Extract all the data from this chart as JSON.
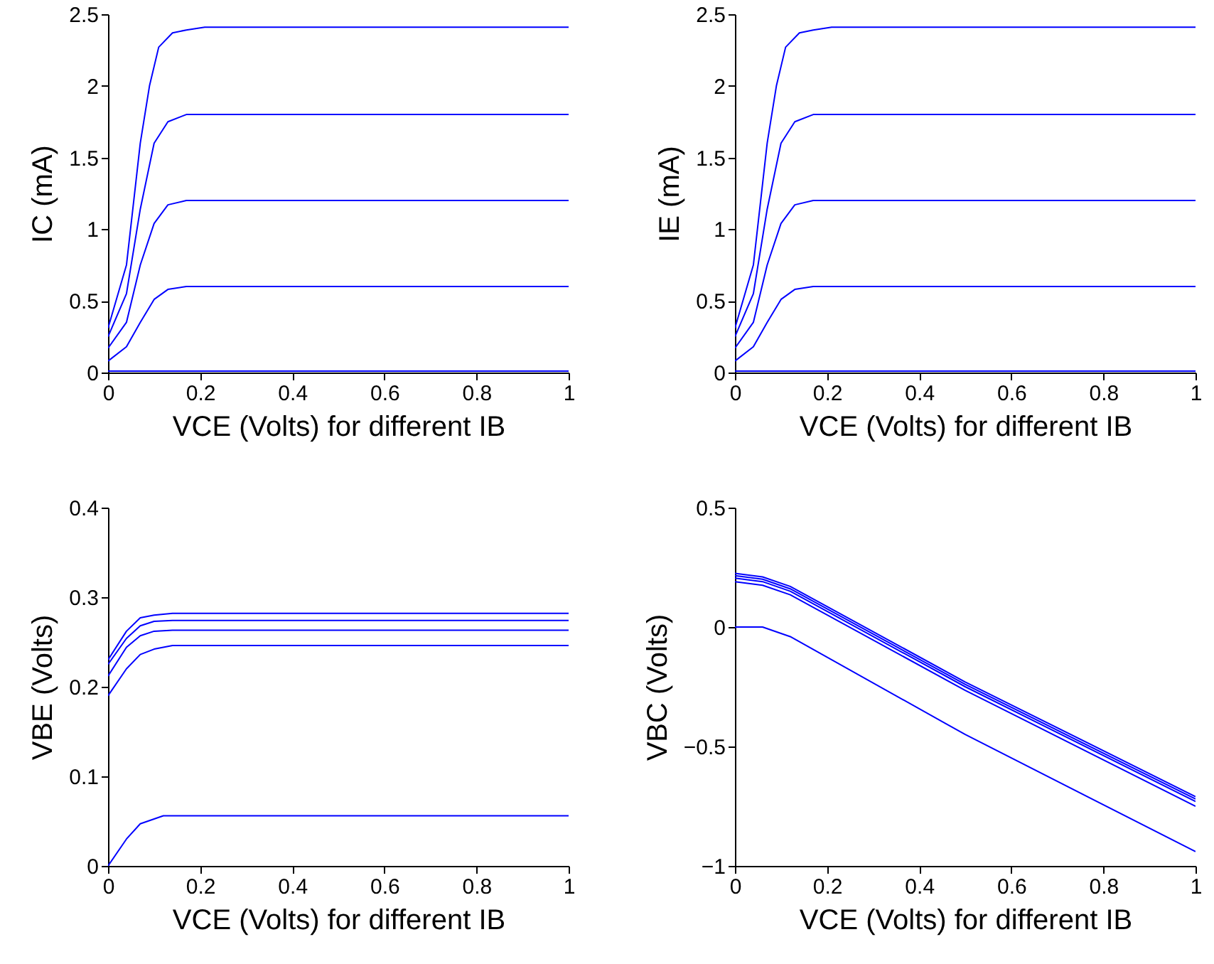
{
  "chart_data": [
    {
      "type": "line",
      "xlabel": "VCE (Volts) for different IB",
      "ylabel": "IC (mA)",
      "xlim": [
        0,
        1
      ],
      "xticks": [
        0,
        0.2,
        0.4,
        0.6,
        0.8,
        1
      ],
      "ylim": [
        0,
        2.5
      ],
      "yticks": [
        0,
        0.5,
        1,
        1.5,
        2,
        2.5
      ],
      "series": [
        {
          "color": "#0000ff",
          "x": [
            0,
            1
          ],
          "values": [
            0.01,
            0.01
          ]
        },
        {
          "color": "#0000ff",
          "x": [
            0,
            0.04,
            0.07,
            0.1,
            0.13,
            0.17,
            1
          ],
          "values": [
            0.08,
            0.18,
            0.35,
            0.51,
            0.58,
            0.6,
            0.6
          ]
        },
        {
          "color": "#0000ff",
          "x": [
            0,
            0.04,
            0.07,
            0.1,
            0.13,
            0.17,
            1
          ],
          "values": [
            0.17,
            0.35,
            0.75,
            1.04,
            1.17,
            1.2,
            1.2
          ]
        },
        {
          "color": "#0000ff",
          "x": [
            0,
            0.04,
            0.07,
            0.1,
            0.13,
            0.17,
            1
          ],
          "values": [
            0.25,
            0.55,
            1.14,
            1.6,
            1.75,
            1.8,
            1.8
          ]
        },
        {
          "color": "#0000ff",
          "x": [
            0,
            0.04,
            0.07,
            0.09,
            0.11,
            0.14,
            0.17,
            0.21,
            1
          ],
          "values": [
            0.31,
            0.75,
            1.6,
            2.0,
            2.27,
            2.37,
            2.39,
            2.41,
            2.41
          ]
        }
      ]
    },
    {
      "type": "line",
      "xlabel": "VCE (Volts) for different IB",
      "ylabel": "IE (mA)",
      "xlim": [
        0,
        1
      ],
      "xticks": [
        0,
        0.2,
        0.4,
        0.6,
        0.8,
        1
      ],
      "ylim": [
        0,
        2.5
      ],
      "yticks": [
        0,
        0.5,
        1,
        1.5,
        2,
        2.5
      ],
      "series": [
        {
          "color": "#0000ff",
          "x": [
            0,
            1
          ],
          "values": [
            0.01,
            0.01
          ]
        },
        {
          "color": "#0000ff",
          "x": [
            0,
            0.04,
            0.07,
            0.1,
            0.13,
            0.17,
            1
          ],
          "values": [
            0.08,
            0.18,
            0.35,
            0.51,
            0.58,
            0.6,
            0.6
          ]
        },
        {
          "color": "#0000ff",
          "x": [
            0,
            0.04,
            0.07,
            0.1,
            0.13,
            0.17,
            1
          ],
          "values": [
            0.17,
            0.35,
            0.75,
            1.04,
            1.17,
            1.2,
            1.2
          ]
        },
        {
          "color": "#0000ff",
          "x": [
            0,
            0.04,
            0.07,
            0.1,
            0.13,
            0.17,
            1
          ],
          "values": [
            0.25,
            0.55,
            1.14,
            1.6,
            1.75,
            1.8,
            1.8
          ]
        },
        {
          "color": "#0000ff",
          "x": [
            0,
            0.04,
            0.07,
            0.09,
            0.11,
            0.14,
            0.17,
            0.21,
            1
          ],
          "values": [
            0.31,
            0.75,
            1.6,
            2.0,
            2.27,
            2.37,
            2.39,
            2.41,
            2.41
          ]
        }
      ]
    },
    {
      "type": "line",
      "xlabel": "VCE (Volts) for different IB",
      "ylabel": "VBE (Volts)",
      "xlim": [
        0,
        1
      ],
      "xticks": [
        0,
        0.2,
        0.4,
        0.6,
        0.8,
        1
      ],
      "ylim": [
        0,
        0.4
      ],
      "yticks": [
        0,
        0.1,
        0.2,
        0.3,
        0.4
      ],
      "series": [
        {
          "color": "#0000ff",
          "x": [
            0,
            0.04,
            0.07,
            0.12,
            1
          ],
          "values": [
            0,
            0.03,
            0.047,
            0.056,
            0.056
          ]
        },
        {
          "color": "#0000ff",
          "x": [
            0,
            0.04,
            0.07,
            0.1,
            0.14,
            1
          ],
          "values": [
            0.19,
            0.22,
            0.236,
            0.242,
            0.246,
            0.246
          ]
        },
        {
          "color": "#0000ff",
          "x": [
            0,
            0.04,
            0.07,
            0.1,
            0.14,
            1
          ],
          "values": [
            0.212,
            0.244,
            0.257,
            0.262,
            0.263,
            0.263
          ]
        },
        {
          "color": "#0000ff",
          "x": [
            0,
            0.04,
            0.07,
            0.1,
            0.14,
            1
          ],
          "values": [
            0.225,
            0.254,
            0.268,
            0.273,
            0.274,
            0.274
          ]
        },
        {
          "color": "#0000ff",
          "x": [
            0,
            0.04,
            0.07,
            0.1,
            0.14,
            1
          ],
          "values": [
            0.23,
            0.262,
            0.277,
            0.28,
            0.282,
            0.282
          ]
        }
      ]
    },
    {
      "type": "line",
      "xlabel": "VCE (Volts) for different IB",
      "ylabel": "VBC (Volts)",
      "xlim": [
        0,
        1
      ],
      "xticks": [
        0,
        0.2,
        0.4,
        0.6,
        0.8,
        1
      ],
      "ylim": [
        -1,
        0.5
      ],
      "yticks": [
        -1,
        -0.5,
        0,
        0.5
      ],
      "series": [
        {
          "color": "#0000ff",
          "x": [
            0,
            0.06,
            0.12,
            0.5,
            1
          ],
          "values": [
            0,
            0,
            -0.04,
            -0.45,
            -0.94
          ]
        },
        {
          "color": "#0000ff",
          "x": [
            0,
            0.06,
            0.12,
            0.5,
            1
          ],
          "values": [
            0.19,
            0.175,
            0.135,
            -0.265,
            -0.75
          ]
        },
        {
          "color": "#0000ff",
          "x": [
            0,
            0.06,
            0.12,
            0.5,
            1
          ],
          "values": [
            0.205,
            0.19,
            0.15,
            -0.25,
            -0.73
          ]
        },
        {
          "color": "#0000ff",
          "x": [
            0,
            0.06,
            0.12,
            0.5,
            1
          ],
          "values": [
            0.215,
            0.2,
            0.16,
            -0.24,
            -0.72
          ]
        },
        {
          "color": "#0000ff",
          "x": [
            0,
            0.06,
            0.12,
            0.5,
            1
          ],
          "values": [
            0.225,
            0.21,
            0.17,
            -0.23,
            -0.71
          ]
        }
      ]
    }
  ]
}
